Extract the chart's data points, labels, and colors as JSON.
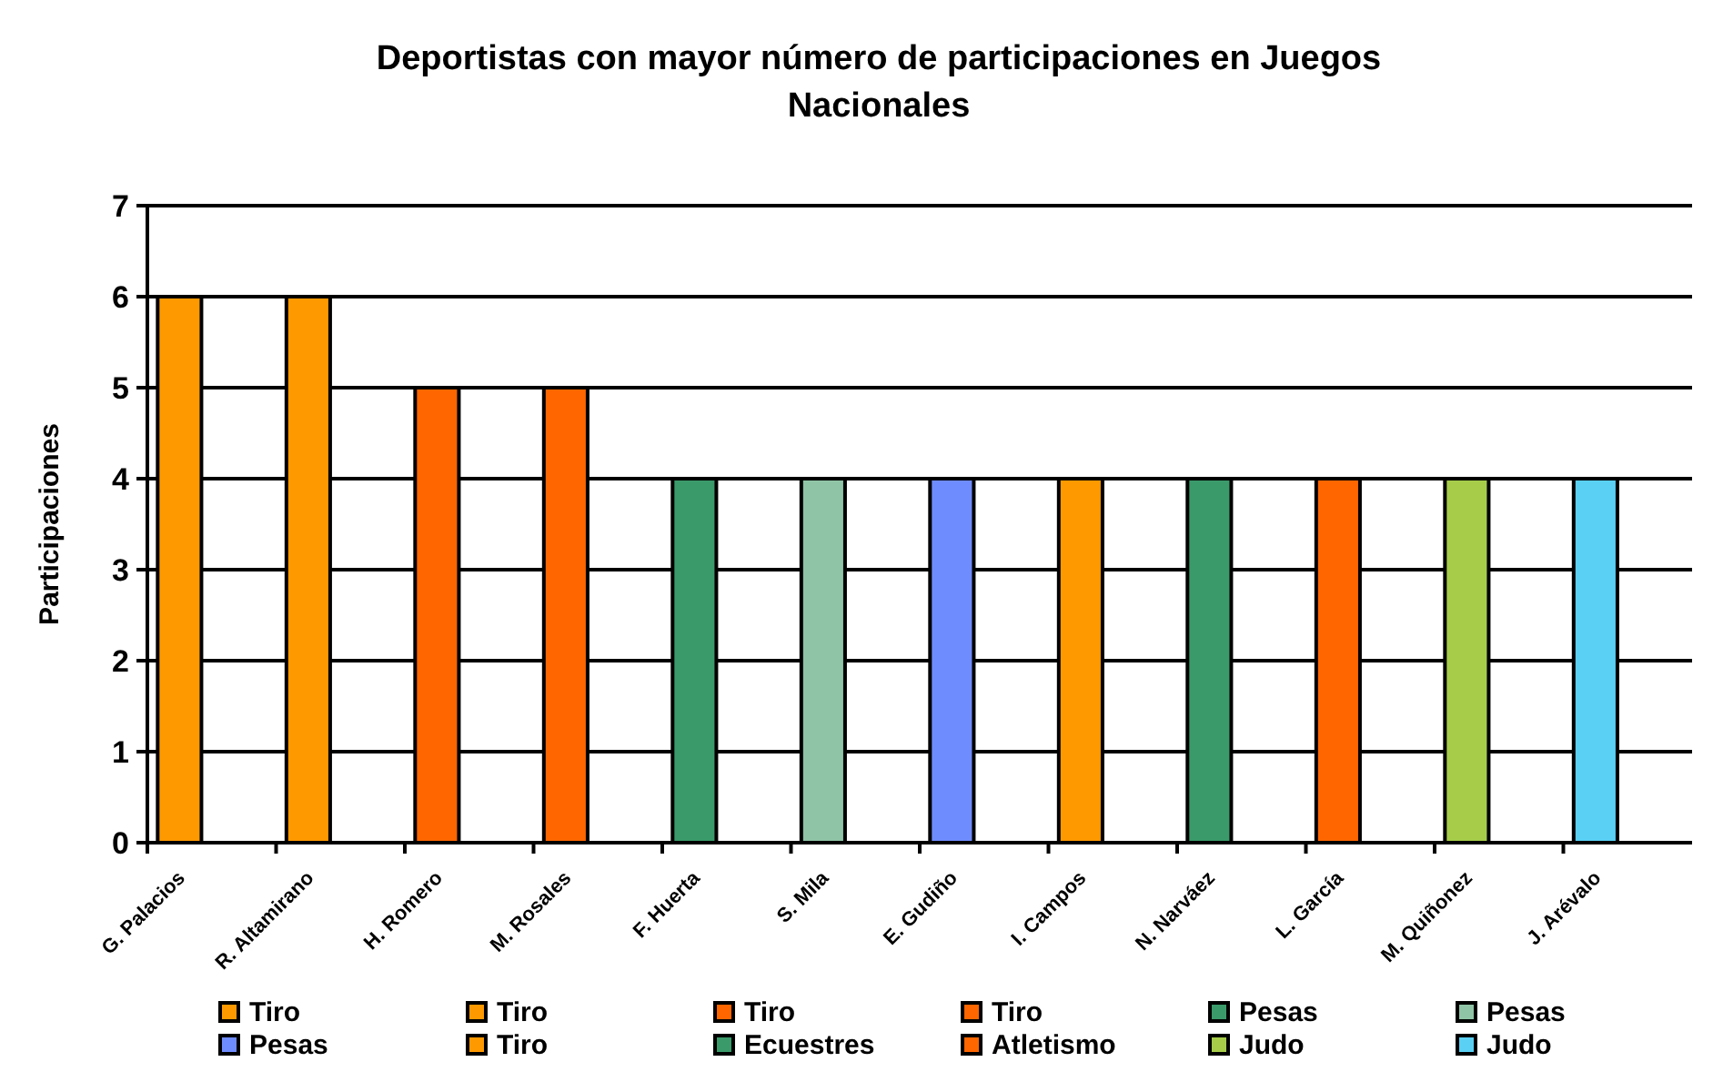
{
  "chart_data": {
    "type": "bar",
    "title": "Deportistas con mayor número de participaciones en Juegos Nacionales",
    "ylabel": "Participaciones",
    "categories": [
      "G. Palacios",
      "R. Altamirano",
      "H. Romero",
      "M. Rosales",
      "F. Huerta",
      "S. Mila",
      "E. Gudiño",
      "I. Campos",
      "N. Narváez",
      "L. García",
      "M. Quiñonez",
      "J. Arévalo"
    ],
    "series": [
      {
        "name": "Tiro",
        "color": "#ff9900",
        "values": [
          6,
          null,
          null,
          null,
          null,
          null,
          null,
          null,
          null,
          null,
          null,
          null
        ]
      },
      {
        "name": "Tiro",
        "color": "#ff9900",
        "values": [
          null,
          6,
          null,
          null,
          null,
          null,
          null,
          null,
          null,
          null,
          null,
          null
        ]
      },
      {
        "name": "Tiro",
        "color": "#ff6600",
        "values": [
          null,
          null,
          5,
          null,
          null,
          null,
          null,
          null,
          null,
          null,
          null,
          null
        ]
      },
      {
        "name": "Tiro",
        "color": "#ff6600",
        "values": [
          null,
          null,
          null,
          5,
          null,
          null,
          null,
          null,
          null,
          null,
          null,
          null
        ]
      },
      {
        "name": "Pesas",
        "color": "#3a9a6a",
        "values": [
          null,
          null,
          null,
          null,
          4,
          null,
          null,
          null,
          null,
          null,
          null,
          null
        ]
      },
      {
        "name": "Pesas",
        "color": "#8fc4a6",
        "values": [
          null,
          null,
          null,
          null,
          null,
          4,
          null,
          null,
          null,
          null,
          null,
          null
        ]
      },
      {
        "name": "Pesas",
        "color": "#6f8cff",
        "values": [
          null,
          null,
          null,
          null,
          null,
          null,
          4,
          null,
          null,
          null,
          null,
          null
        ]
      },
      {
        "name": "Tiro",
        "color": "#ff9900",
        "values": [
          null,
          null,
          null,
          null,
          null,
          null,
          null,
          4,
          null,
          null,
          null,
          null
        ]
      },
      {
        "name": "Ecuestres",
        "color": "#3a9a6a",
        "values": [
          null,
          null,
          null,
          null,
          null,
          null,
          null,
          null,
          4,
          null,
          null,
          null
        ]
      },
      {
        "name": "Atletismo",
        "color": "#ff6600",
        "values": [
          null,
          null,
          null,
          null,
          null,
          null,
          null,
          null,
          null,
          4,
          null,
          null
        ]
      },
      {
        "name": "Judo",
        "color": "#a6cc4a",
        "values": [
          null,
          null,
          null,
          null,
          null,
          null,
          null,
          null,
          null,
          null,
          4,
          null
        ]
      },
      {
        "name": "Judo",
        "color": "#5ad0f5",
        "values": [
          null,
          null,
          null,
          null,
          null,
          null,
          null,
          null,
          null,
          null,
          null,
          4
        ]
      }
    ],
    "ylim": [
      0,
      7
    ],
    "yticks": [
      0,
      1,
      2,
      3,
      4,
      5,
      6,
      7
    ],
    "grid": "y",
    "legend": "bottom"
  }
}
